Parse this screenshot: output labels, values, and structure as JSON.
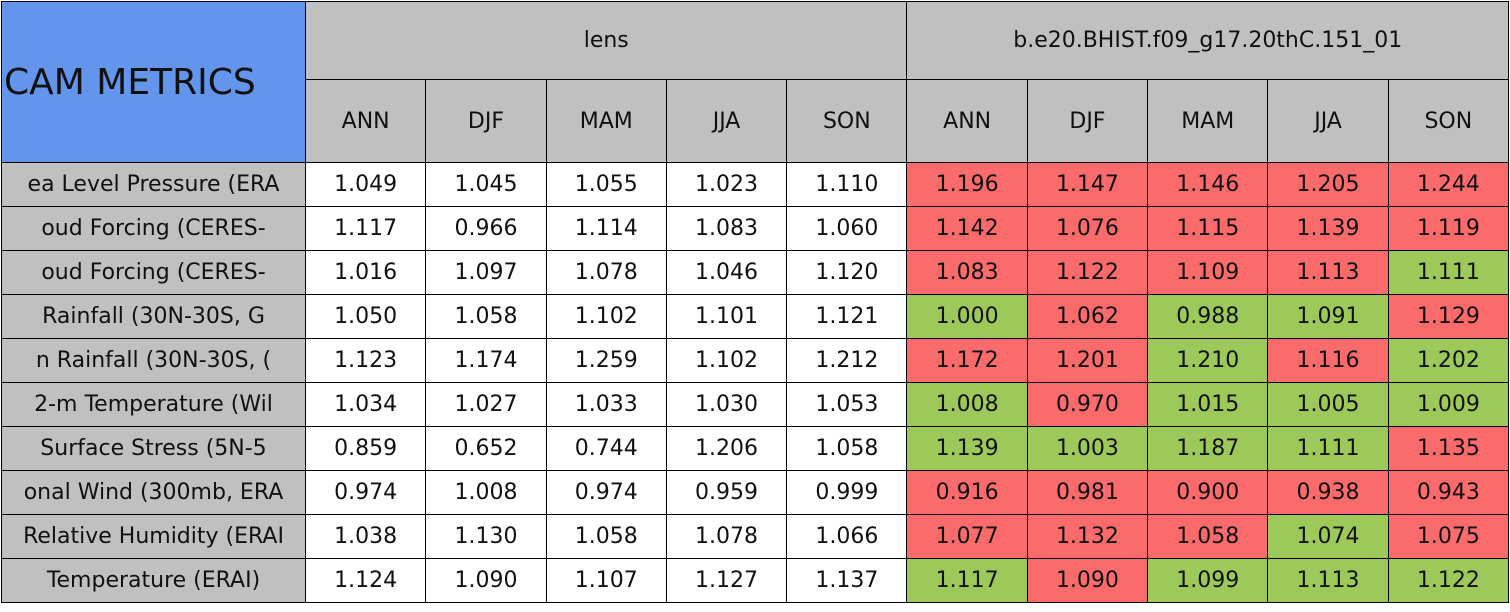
{
  "table": {
    "title": "CAM METRICS",
    "groups": [
      "lens",
      "b.e20.BHIST.f09_g17.20thC.151_01"
    ],
    "columns": [
      "ANN",
      "DJF",
      "MAM",
      "JJA",
      "SON",
      "ANN",
      "DJF",
      "MAM",
      "JJA",
      "SON"
    ],
    "colors": {
      "red": "#fb6b6b",
      "green": "#9dc95a",
      "plain": "#ffffff"
    },
    "rows": [
      {
        "label": "ea Level Pressure (ERA",
        "cells": [
          "1.049",
          "1.045",
          "1.055",
          "1.023",
          "1.110",
          "1.196",
          "1.147",
          "1.146",
          "1.205",
          "1.244"
        ],
        "highlight": [
          "red",
          "red",
          "red",
          "red",
          "red"
        ]
      },
      {
        "label": "oud Forcing (CERES-",
        "cells": [
          "1.117",
          "0.966",
          "1.114",
          "1.083",
          "1.060",
          "1.142",
          "1.076",
          "1.115",
          "1.139",
          "1.119"
        ],
        "highlight": [
          "red",
          "red",
          "red",
          "red",
          "red"
        ]
      },
      {
        "label": "oud Forcing (CERES-",
        "cells": [
          "1.016",
          "1.097",
          "1.078",
          "1.046",
          "1.120",
          "1.083",
          "1.122",
          "1.109",
          "1.113",
          "1.111"
        ],
        "highlight": [
          "red",
          "red",
          "red",
          "red",
          "green"
        ]
      },
      {
        "label": "Rainfall (30N-30S, G",
        "cells": [
          "1.050",
          "1.058",
          "1.102",
          "1.101",
          "1.121",
          "1.000",
          "1.062",
          "0.988",
          "1.091",
          "1.129"
        ],
        "highlight": [
          "green",
          "red",
          "green",
          "green",
          "red"
        ]
      },
      {
        "label": "n Rainfall (30N-30S, (",
        "cells": [
          "1.123",
          "1.174",
          "1.259",
          "1.102",
          "1.212",
          "1.172",
          "1.201",
          "1.210",
          "1.116",
          "1.202"
        ],
        "highlight": [
          "red",
          "red",
          "green",
          "red",
          "green"
        ]
      },
      {
        "label": "2-m Temperature (Wil",
        "cells": [
          "1.034",
          "1.027",
          "1.033",
          "1.030",
          "1.053",
          "1.008",
          "0.970",
          "1.015",
          "1.005",
          "1.009"
        ],
        "highlight": [
          "green",
          "red",
          "green",
          "green",
          "green"
        ]
      },
      {
        "label": "Surface Stress (5N-5",
        "cells": [
          "0.859",
          "0.652",
          "0.744",
          "1.206",
          "1.058",
          "1.139",
          "1.003",
          "1.187",
          "1.111",
          "1.135"
        ],
        "highlight": [
          "green",
          "green",
          "green",
          "green",
          "red"
        ]
      },
      {
        "label": "onal Wind (300mb, ERA",
        "cells": [
          "0.974",
          "1.008",
          "0.974",
          "0.959",
          "0.999",
          "0.916",
          "0.981",
          "0.900",
          "0.938",
          "0.943"
        ],
        "highlight": [
          "red",
          "red",
          "red",
          "red",
          "red"
        ]
      },
      {
        "label": "Relative Humidity (ERAI",
        "cells": [
          "1.038",
          "1.130",
          "1.058",
          "1.078",
          "1.066",
          "1.077",
          "1.132",
          "1.058",
          "1.074",
          "1.075"
        ],
        "highlight": [
          "red",
          "red",
          "red",
          "green",
          "red"
        ]
      },
      {
        "label": "Temperature (ERAI)",
        "cells": [
          "1.124",
          "1.090",
          "1.107",
          "1.127",
          "1.137",
          "1.117",
          "1.090",
          "1.099",
          "1.113",
          "1.122"
        ],
        "highlight": [
          "green",
          "red",
          "green",
          "green",
          "green"
        ]
      }
    ]
  }
}
